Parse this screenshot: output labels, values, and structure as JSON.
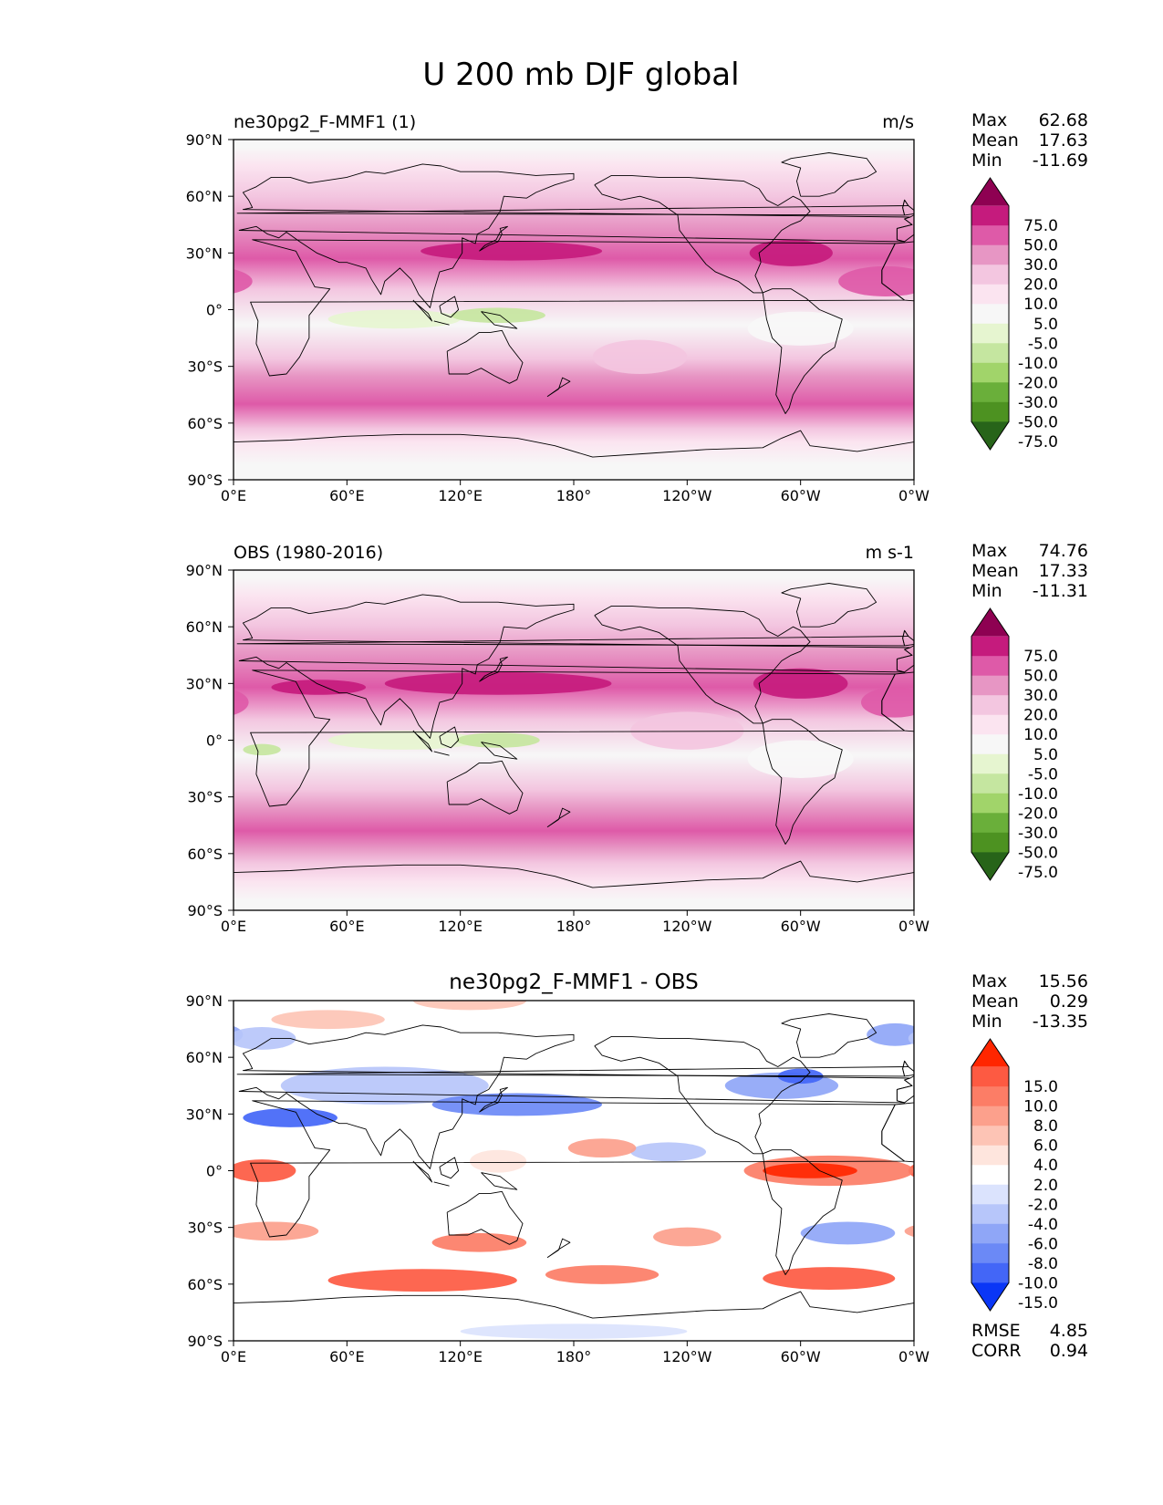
{
  "figure": {
    "title": "U 200 mb DJF global"
  },
  "chart_data": [
    {
      "type": "heatmap",
      "id": "test",
      "title_left": "ne30pg2_F-MMF1 (1)",
      "title_right": "m/s",
      "stats": [
        {
          "label": "Max",
          "value": "62.68"
        },
        {
          "label": "Mean",
          "value": "17.63"
        },
        {
          "label": "Min",
          "value": "-11.69"
        }
      ],
      "x_ticks": [
        "0°E",
        "60°E",
        "120°E",
        "180°",
        "120°W",
        "60°W",
        "0°W"
      ],
      "y_ticks": [
        "90°N",
        "60°N",
        "30°N",
        "0°",
        "30°S",
        "60°S",
        "90°S"
      ],
      "xlim": [
        0,
        360
      ],
      "ylim": [
        -90,
        90
      ],
      "colorbar": {
        "labels": [
          "75.0",
          "50.0",
          "30.0",
          "20.0",
          "10.0",
          "5.0",
          "-5.0",
          "-10.0",
          "-20.0",
          "-30.0",
          "-50.0",
          "-75.0"
        ],
        "colors": [
          "#8e0152",
          "#c51b7d",
          "#de5aa8",
          "#e796c4",
          "#f3c6e0",
          "#fbe4f0",
          "#f7f7f7",
          "#e6f5d0",
          "#c5e6a0",
          "#a1d46a",
          "#6aaf3a",
          "#4d9221",
          "#276419"
        ]
      },
      "bands": [
        {
          "lat": 90,
          "color": "#f7f7f7"
        },
        {
          "lat": 82,
          "color": "#fbe4f0"
        },
        {
          "lat": 70,
          "color": "#f3c6e0"
        },
        {
          "lat": 50,
          "color": "#e796c4"
        },
        {
          "lat": 38,
          "color": "#de5aa8"
        },
        {
          "lat": 16,
          "color": "#f3c6e0"
        },
        {
          "lat": 6,
          "color": "#f7f7f7"
        },
        {
          "lat": -22,
          "color": "#f3c6e0"
        },
        {
          "lat": -30,
          "color": "#e796c4"
        },
        {
          "lat": -40,
          "color": "#de5aa8"
        },
        {
          "lat": -60,
          "color": "#f3c6e0"
        },
        {
          "lat": -66,
          "color": "#fbe4f0"
        },
        {
          "lat": -74,
          "color": "#f7f7f7"
        }
      ],
      "blobs": [
        {
          "lon": 147,
          "lat": 31,
          "rx": 48,
          "ry": 5,
          "color": "#c51b7d"
        },
        {
          "lon": 85,
          "lat": -5,
          "rx": 35,
          "ry": 5,
          "color": "#e6f5d0"
        },
        {
          "lon": 140,
          "lat": -3,
          "rx": 25,
          "ry": 4,
          "color": "#c5e6a0"
        },
        {
          "lon": 295,
          "lat": 30,
          "rx": 22,
          "ry": 7,
          "color": "#c51b7d"
        },
        {
          "lon": 345,
          "lat": 15,
          "rx": 25,
          "ry": 8,
          "color": "#de5aa8"
        },
        {
          "lon": 300,
          "lat": -10,
          "rx": 28,
          "ry": 9,
          "color": "#f7f7f7"
        },
        {
          "lon": 215,
          "lat": -25,
          "rx": 25,
          "ry": 9,
          "color": "#f3c6e0"
        }
      ]
    },
    {
      "type": "heatmap",
      "id": "reference",
      "title_left": "OBS (1980-2016)",
      "title_right": "m s-1",
      "stats": [
        {
          "label": "Max",
          "value": "74.76"
        },
        {
          "label": "Mean",
          "value": "17.33"
        },
        {
          "label": "Min",
          "value": "-11.31"
        }
      ],
      "x_ticks": [
        "0°E",
        "60°E",
        "120°E",
        "180°",
        "120°W",
        "60°W",
        "0°W"
      ],
      "y_ticks": [
        "90°N",
        "60°N",
        "30°N",
        "0°",
        "30°S",
        "60°S",
        "90°S"
      ],
      "xlim": [
        0,
        360
      ],
      "ylim": [
        -90,
        90
      ],
      "colorbar": {
        "labels": [
          "75.0",
          "50.0",
          "30.0",
          "20.0",
          "10.0",
          "5.0",
          "-5.0",
          "-10.0",
          "-20.0",
          "-30.0",
          "-50.0",
          "-75.0"
        ],
        "colors": [
          "#8e0152",
          "#c51b7d",
          "#de5aa8",
          "#e796c4",
          "#f3c6e0",
          "#fbe4f0",
          "#f7f7f7",
          "#e6f5d0",
          "#c5e6a0",
          "#a1d46a",
          "#6aaf3a",
          "#4d9221",
          "#276419"
        ]
      },
      "bands": [
        {
          "lat": 90,
          "color": "#f7f7f7"
        },
        {
          "lat": 82,
          "color": "#fbe4f0"
        },
        {
          "lat": 70,
          "color": "#f3c6e0"
        },
        {
          "lat": 52,
          "color": "#e796c4"
        },
        {
          "lat": 40,
          "color": "#de5aa8"
        },
        {
          "lat": 16,
          "color": "#f3c6e0"
        },
        {
          "lat": 6,
          "color": "#f7f7f7"
        },
        {
          "lat": -22,
          "color": "#f3c6e0"
        },
        {
          "lat": -30,
          "color": "#e796c4"
        },
        {
          "lat": -42,
          "color": "#de5aa8"
        },
        {
          "lat": -54,
          "color": "#e796c4"
        },
        {
          "lat": -60,
          "color": "#f3c6e0"
        },
        {
          "lat": -70,
          "color": "#fbe4f0"
        },
        {
          "lat": -80,
          "color": "#f7f7f7"
        }
      ],
      "blobs": [
        {
          "lon": 140,
          "lat": 30,
          "rx": 60,
          "ry": 6,
          "color": "#c51b7d"
        },
        {
          "lon": 45,
          "lat": 28,
          "rx": 25,
          "ry": 4,
          "color": "#c51b7d"
        },
        {
          "lon": 90,
          "lat": 0,
          "rx": 40,
          "ry": 5,
          "color": "#e6f5d0"
        },
        {
          "lon": 140,
          "lat": 0,
          "rx": 22,
          "ry": 4,
          "color": "#c5e6a0"
        },
        {
          "lon": 15,
          "lat": -5,
          "rx": 10,
          "ry": 3,
          "color": "#c5e6a0"
        },
        {
          "lon": 300,
          "lat": 30,
          "rx": 25,
          "ry": 8,
          "color": "#c51b7d"
        },
        {
          "lon": 350,
          "lat": 20,
          "rx": 18,
          "ry": 8,
          "color": "#de5aa8"
        },
        {
          "lon": 300,
          "lat": -10,
          "rx": 28,
          "ry": 10,
          "color": "#f7f7f7"
        },
        {
          "lon": 240,
          "lat": 5,
          "rx": 30,
          "ry": 10,
          "color": "#f3c6e0"
        }
      ]
    },
    {
      "type": "heatmap",
      "id": "difference",
      "title": "ne30pg2_F-MMF1 - OBS",
      "stats": [
        {
          "label": "Max",
          "value": "15.56"
        },
        {
          "label": "Mean",
          "value": "0.29"
        },
        {
          "label": "Min",
          "value": "-13.35"
        }
      ],
      "metrics": [
        {
          "label": "RMSE",
          "value": "4.85"
        },
        {
          "label": "CORR",
          "value": "0.94"
        }
      ],
      "x_ticks": [
        "0°E",
        "60°E",
        "120°E",
        "180°",
        "120°W",
        "60°W",
        "0°W"
      ],
      "y_ticks": [
        "90°N",
        "60°N",
        "30°N",
        "0°",
        "30°S",
        "60°S",
        "90°S"
      ],
      "xlim": [
        0,
        360
      ],
      "ylim": [
        -90,
        90
      ],
      "colorbar": {
        "labels": [
          "15.0",
          "10.0",
          "8.0",
          "6.0",
          "4.0",
          "2.0",
          "-2.0",
          "-4.0",
          "-6.0",
          "-8.0",
          "-10.0",
          "-15.0"
        ],
        "colors": [
          "#ff2600",
          "#fd5a42",
          "#fc7d66",
          "#fca08c",
          "#fdc4b5",
          "#fee5dd",
          "#ffffff",
          "#dbe3fd",
          "#b7c6fa",
          "#8fa6f7",
          "#6b89f6",
          "#4366f7",
          "#0a36f6"
        ]
      },
      "bands": [
        {
          "lat": 90,
          "color": "#ffffff"
        }
      ],
      "blobs": [
        {
          "lon": 80,
          "lat": 45,
          "rx": 55,
          "ry": 10,
          "color": "#b7c6fa"
        },
        {
          "lon": 150,
          "lat": 35,
          "rx": 45,
          "ry": 6,
          "color": "#6b89f6"
        },
        {
          "lon": 30,
          "lat": 28,
          "rx": 25,
          "ry": 5,
          "color": "#4366f7"
        },
        {
          "lon": 290,
          "lat": 45,
          "rx": 30,
          "ry": 7,
          "color": "#8fa6f7"
        },
        {
          "lon": 300,
          "lat": 50,
          "rx": 12,
          "ry": 4,
          "color": "#4366f7"
        },
        {
          "lon": 15,
          "lat": 0,
          "rx": 18,
          "ry": 6,
          "color": "#fd5a42"
        },
        {
          "lon": 315,
          "lat": 0,
          "rx": 45,
          "ry": 8,
          "color": "#fc7d66"
        },
        {
          "lon": 305,
          "lat": 0,
          "rx": 25,
          "ry": 4,
          "color": "#ff2600"
        },
        {
          "lon": 20,
          "lat": -32,
          "rx": 25,
          "ry": 5,
          "color": "#fca08c"
        },
        {
          "lon": 130,
          "lat": -38,
          "rx": 25,
          "ry": 5,
          "color": "#fc7d66"
        },
        {
          "lon": 100,
          "lat": -58,
          "rx": 50,
          "ry": 6,
          "color": "#fd5a42"
        },
        {
          "lon": 195,
          "lat": -55,
          "rx": 30,
          "ry": 5,
          "color": "#fc7d66"
        },
        {
          "lon": 315,
          "lat": -57,
          "rx": 35,
          "ry": 6,
          "color": "#fd5a42"
        },
        {
          "lon": 325,
          "lat": -33,
          "rx": 25,
          "ry": 6,
          "color": "#8fa6f7"
        },
        {
          "lon": 240,
          "lat": -35,
          "rx": 18,
          "ry": 5,
          "color": "#fca08c"
        },
        {
          "lon": 230,
          "lat": 10,
          "rx": 20,
          "ry": 5,
          "color": "#b7c6fa"
        },
        {
          "lon": 195,
          "lat": 12,
          "rx": 18,
          "ry": 5,
          "color": "#fca08c"
        },
        {
          "lon": 125,
          "lat": 90,
          "rx": 30,
          "ry": 5,
          "color": "#fdc4b5"
        },
        {
          "lon": 50,
          "lat": 80,
          "rx": 30,
          "ry": 5,
          "color": "#fdc4b5"
        },
        {
          "lon": 350,
          "lat": 72,
          "rx": 15,
          "ry": 6,
          "color": "#8fa6f7"
        },
        {
          "lon": 15,
          "lat": 70,
          "rx": 18,
          "ry": 6,
          "color": "#b7c6fa"
        },
        {
          "lon": 180,
          "lat": -85,
          "rx": 60,
          "ry": 4,
          "color": "#dbe3fd"
        },
        {
          "lon": 140,
          "lat": 5,
          "rx": 15,
          "ry": 6,
          "color": "#fee5dd"
        }
      ]
    }
  ]
}
